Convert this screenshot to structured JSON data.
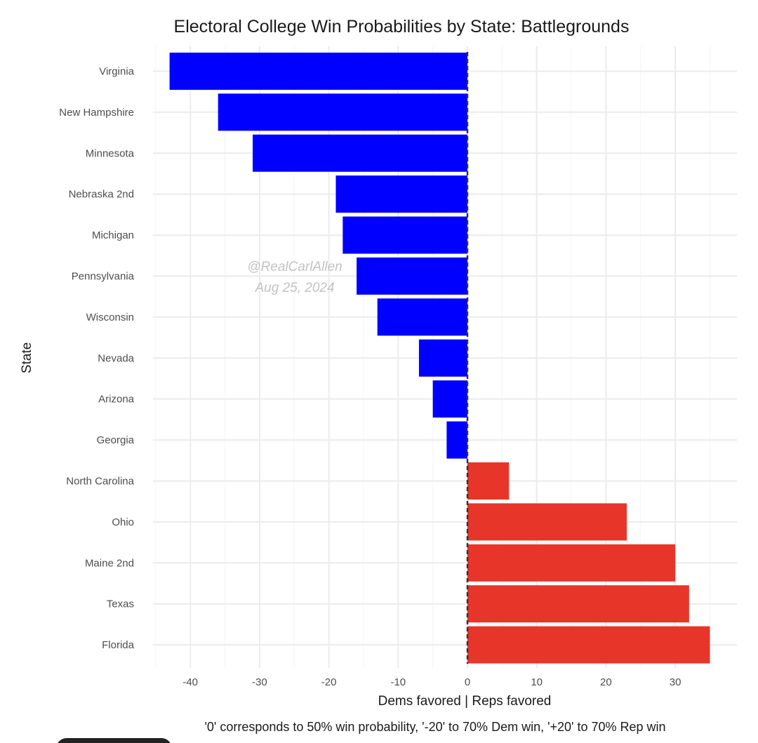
{
  "chart_data": {
    "type": "bar",
    "orientation": "horizontal",
    "title": "Electoral College Win Probabilities by State: Battlegrounds",
    "xlabel": "Dems favored | Reps favored",
    "ylabel": "State",
    "caption": "'0' corresponds to 50% win probability, '-20' to 70% Dem win, '+20' to 70% Rep win",
    "watermark": [
      "@RealCarlAllen",
      "Aug 25, 2024"
    ],
    "xlim": [
      -45,
      39
    ],
    "xticks": [
      -40,
      -30,
      -20,
      -10,
      0,
      10,
      20,
      30
    ],
    "grid": true,
    "categories": [
      "Virginia",
      "New Hampshire",
      "Minnesota",
      "Nebraska 2nd",
      "Michigan",
      "Pennsylvania",
      "Wisconsin",
      "Nevada",
      "Arizona",
      "Georgia",
      "North Carolina",
      "Ohio",
      "Maine 2nd",
      "Texas",
      "Florida"
    ],
    "values": [
      -43,
      -36,
      -31,
      -19,
      -18,
      -16,
      -13,
      -7,
      -5,
      -3,
      6,
      23,
      30,
      32,
      35
    ],
    "colors": {
      "dem": "#0000ff",
      "rep": "#e8352a"
    }
  }
}
